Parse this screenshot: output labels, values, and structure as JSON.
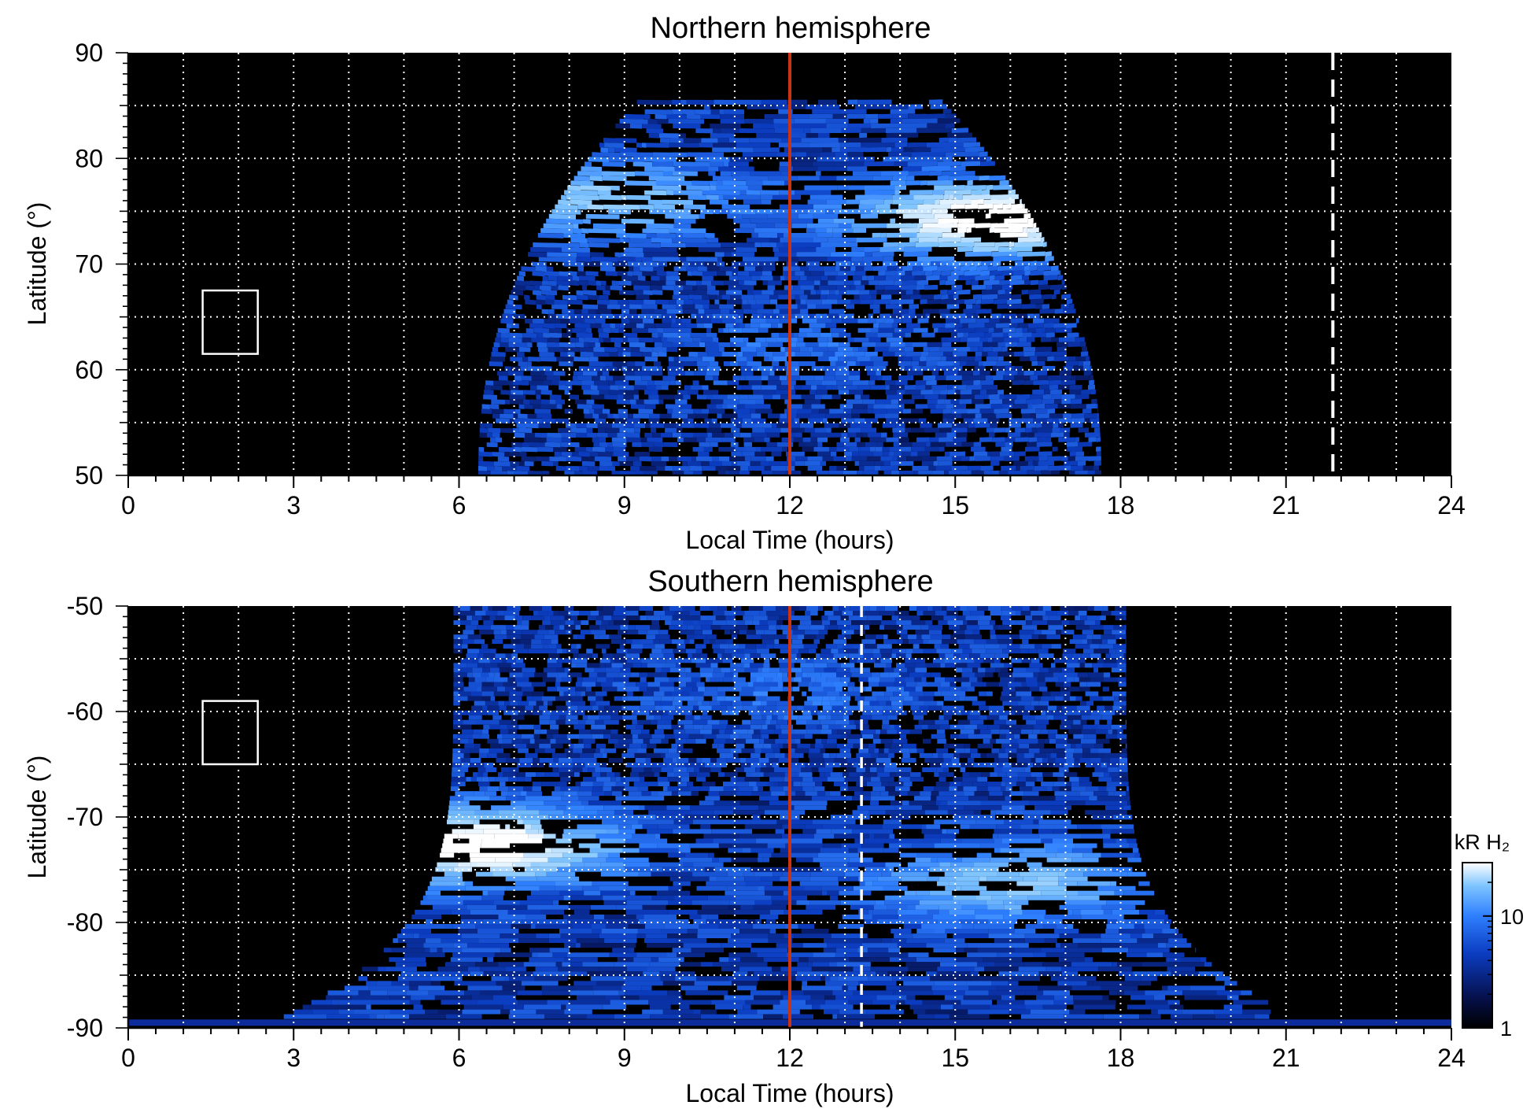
{
  "colors": {
    "background": "#000000",
    "grid": "#ffffff",
    "noon_line": "#cc3311",
    "marker": "#ffffff",
    "colormap": [
      "#000000",
      "#06104a",
      "#0b3cc0",
      "#2f80ff",
      "#7ec4ff",
      "#ffffff"
    ]
  },
  "colorbar": {
    "title": "kR H₂",
    "ticks": [
      "1",
      "10"
    ],
    "tick_values": [
      1,
      10
    ],
    "range": [
      1,
      30
    ],
    "scale": "log"
  },
  "chart_data": [
    {
      "type": "heatmap",
      "title": "Northern hemisphere",
      "xlabel": "Local Time (hours)",
      "ylabel": "Latitude (°)",
      "xlim": [
        0,
        24
      ],
      "ylim": [
        50,
        90
      ],
      "xticks": [
        0,
        3,
        6,
        9,
        12,
        15,
        18,
        21,
        24
      ],
      "xtick_labels": [
        "0",
        "3",
        "6",
        "9",
        "12",
        "15",
        "18",
        "21",
        "24"
      ],
      "yticks": [
        50,
        60,
        70,
        80,
        90
      ],
      "ytick_labels": [
        "50",
        "60",
        "70",
        "80",
        "90"
      ],
      "grid": true,
      "grid_x_step": 1,
      "grid_y_step": 5,
      "noon_line_x": 12,
      "dashed_line_x": 21.85,
      "box": {
        "x": [
          1.35,
          2.35
        ],
        "y": [
          61.5,
          67.5
        ]
      },
      "coverage": {
        "lat_top": 85.5,
        "lt_start_at_low_lat": 6.35,
        "lt_end_at_low_lat": 17.65,
        "lt_start_at_top": 9.3,
        "lt_end_at_top": 14.7
      },
      "emission_features": [
        {
          "lt": 15.7,
          "lat": 74,
          "intensity_kR": 30,
          "description": ""
        },
        {
          "lt": 8.6,
          "lat": 76,
          "intensity_kR": 15,
          "description": ""
        },
        {
          "lt": 12,
          "lat": 62,
          "intensity_kR": 4,
          "description": ""
        }
      ],
      "colorbar_ref": true
    },
    {
      "type": "heatmap",
      "title": "Southern hemisphere",
      "xlabel": "Local Time (hours)",
      "ylabel": "Latitude (°)",
      "xlim": [
        0,
        24
      ],
      "ylim": [
        -90,
        -50
      ],
      "xticks": [
        0,
        3,
        6,
        9,
        12,
        15,
        18,
        21,
        24
      ],
      "xtick_labels": [
        "0",
        "3",
        "6",
        "9",
        "12",
        "15",
        "18",
        "21",
        "24"
      ],
      "yticks": [
        -90,
        -80,
        -70,
        -60,
        -50
      ],
      "ytick_labels": [
        "-90",
        "-80",
        "-70",
        "-60",
        "-50"
      ],
      "grid": true,
      "grid_x_step": 1,
      "grid_y_step": 5,
      "noon_line_x": 12,
      "dashed_line_x": 13.3,
      "box": {
        "x": [
          1.35,
          2.35
        ],
        "y": [
          -65,
          -59
        ]
      },
      "coverage": {
        "lat_bottom": -89,
        "lt_start_at_high_lat": 5.9,
        "lt_end_at_high_lat": 18.1,
        "lt_start_at_pole": 2.7,
        "lt_end_at_pole": 21.3
      },
      "emission_features": [
        {
          "lt": 6.3,
          "lat": -72.5,
          "intensity_kR": 30,
          "description": ""
        },
        {
          "lt": 16.0,
          "lat": -76,
          "intensity_kR": 15,
          "description": ""
        },
        {
          "lt": 12,
          "lat": -58,
          "intensity_kR": 4,
          "description": ""
        }
      ],
      "colorbar_ref": true
    }
  ]
}
